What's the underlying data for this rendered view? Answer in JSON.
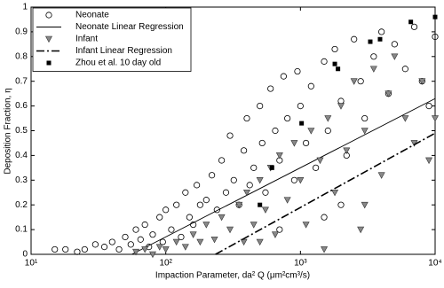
{
  "chart_data": {
    "type": "scatter",
    "x_label": "Impaction Parameter, da² Q (μm²cm³/s)",
    "y_label": "Deposition Fraction, η",
    "xscale": "log",
    "xlim": [
      10,
      10000
    ],
    "xticks": [
      {
        "value": 10,
        "label": "10¹"
      },
      {
        "value": 100,
        "label": "10²"
      },
      {
        "value": 1000,
        "label": "10³"
      },
      {
        "value": 10000,
        "label": "10⁴"
      }
    ],
    "ylim": [
      0,
      1
    ],
    "yticks": [
      0,
      0.1,
      0.2,
      0.3,
      0.4,
      0.5,
      0.6,
      0.7,
      0.8,
      0.9,
      1
    ],
    "legend": "upper left",
    "series": [
      {
        "name": "Neonate",
        "marker": "circle",
        "color": "#000000",
        "x": [
          15,
          18,
          22,
          25,
          30,
          35,
          40,
          45,
          50,
          55,
          60,
          65,
          70,
          75,
          80,
          90,
          95,
          100,
          110,
          120,
          130,
          140,
          150,
          160,
          170,
          180,
          200,
          220,
          240,
          260,
          280,
          300,
          320,
          350,
          380,
          400,
          420,
          450,
          500,
          520,
          550,
          600,
          650,
          700,
          750,
          800,
          900,
          950,
          1000,
          1100,
          1200,
          1300,
          1500,
          1600,
          1800,
          2000,
          2200,
          2500,
          2800,
          3000,
          3500,
          4000,
          4500,
          5000,
          6000,
          7000,
          8000,
          9000,
          10000,
          2000,
          1500,
          700
        ],
        "values": [
          0.02,
          0.02,
          0.01,
          0.02,
          0.04,
          0.03,
          0.05,
          0.02,
          0.07,
          0.04,
          0.1,
          0.06,
          0.12,
          0.03,
          0.08,
          0.15,
          0.05,
          0.18,
          0.1,
          0.2,
          0.07,
          0.25,
          0.15,
          0.12,
          0.28,
          0.2,
          0.22,
          0.32,
          0.18,
          0.38,
          0.25,
          0.48,
          0.3,
          0.2,
          0.42,
          0.55,
          0.28,
          0.35,
          0.6,
          0.45,
          0.25,
          0.67,
          0.5,
          0.38,
          0.72,
          0.55,
          0.3,
          0.74,
          0.6,
          0.45,
          0.68,
          0.35,
          0.78,
          0.5,
          0.83,
          0.62,
          0.4,
          0.87,
          0.7,
          0.55,
          0.8,
          0.9,
          0.65,
          0.85,
          0.75,
          0.92,
          0.7,
          0.6,
          0.88,
          0.2,
          0.15,
          0.1
        ]
      },
      {
        "name": "Neonate Linear Regression",
        "marker": "line",
        "line_style": "solid",
        "color": "#000000",
        "x": [
          56,
          10000
        ],
        "values": [
          0,
          0.63
        ]
      },
      {
        "name": "Infant",
        "marker": "triangle-down",
        "color": "#888888",
        "x": [
          60,
          70,
          80,
          90,
          100,
          120,
          140,
          160,
          180,
          200,
          230,
          260,
          300,
          350,
          380,
          400,
          450,
          500,
          550,
          600,
          650,
          700,
          800,
          900,
          1000,
          1100,
          1200,
          1400,
          1600,
          1800,
          2000,
          2200,
          2500,
          2800,
          3000,
          3500,
          4000,
          4500,
          5000,
          6000,
          7000,
          8000,
          9000,
          10000,
          500,
          1500,
          3000
        ],
        "values": [
          0.01,
          0.02,
          0,
          0.03,
          0.02,
          0.05,
          0.03,
          0.08,
          0.05,
          0.12,
          0.06,
          0.15,
          0.1,
          0.2,
          0.05,
          0.25,
          0.12,
          0.3,
          0.18,
          0.35,
          0.08,
          0.4,
          0.22,
          0.45,
          0.3,
          0.12,
          0.5,
          0.38,
          0.55,
          0.25,
          0.6,
          0.42,
          0.7,
          0.1,
          0.5,
          0.75,
          0.32,
          0.65,
          0.8,
          0.55,
          0.45,
          0.7,
          0.38,
          0.55,
          0.05,
          0.02,
          0.2
        ]
      },
      {
        "name": "Infant Linear Regression",
        "marker": "line",
        "line_style": "dashdot",
        "color": "#000000",
        "x": [
          234,
          10000
        ],
        "values": [
          0,
          0.49
        ]
      },
      {
        "name": "Zhou et al. 10 day old",
        "marker": "square",
        "color": "#000000",
        "x": [
          10000,
          6600,
          3900,
          3300,
          1800,
          1020,
          615,
          500,
          1900
        ],
        "values": [
          0.96,
          0.94,
          0.87,
          0.86,
          0.77,
          0.53,
          0.35,
          0.2,
          0.75
        ]
      }
    ]
  }
}
